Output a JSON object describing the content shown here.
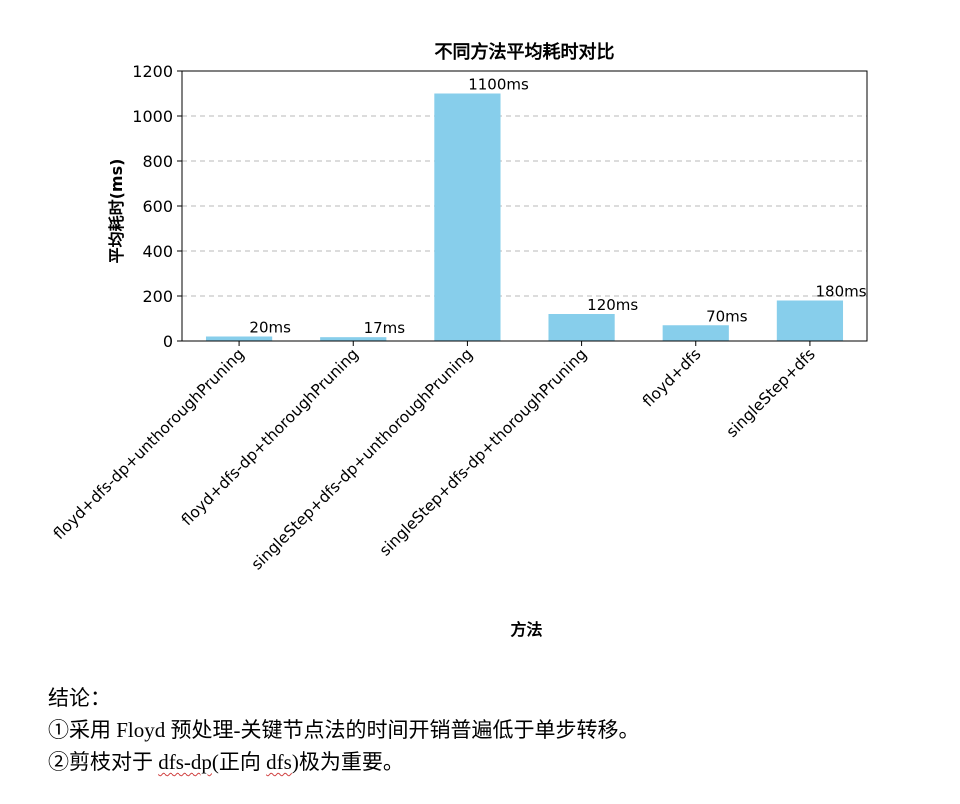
{
  "chart_data": {
    "type": "bar",
    "title": "不同方法平均耗时对比",
    "xlabel": "方法",
    "ylabel": "平均耗时(ms)",
    "categories": [
      "floyd+dfs-dp+unthoroughPruning",
      "floyd+dfs-dp+thoroughPruning",
      "singleStep+dfs-dp+unthoroughPruning",
      "singleStep+dfs-dp+thoroughPruning",
      "floyd+dfs",
      "singleStep+dfs"
    ],
    "values": [
      20,
      17,
      1100,
      120,
      70,
      180
    ],
    "data_labels": [
      "20ms",
      "17ms",
      "1100ms",
      "120ms",
      "70ms",
      "180ms"
    ],
    "ylim": [
      0,
      1200
    ],
    "yticks": [
      0,
      200,
      400,
      600,
      800,
      1000,
      1200
    ],
    "grid": "y-dashed",
    "bar_color": "#87ceeb"
  },
  "conclusion": {
    "heading": "结论：",
    "line1": "①采用 Floyd 预处理-关键节点法的时间开销普遍低于单步转移。",
    "line2_pre": "②剪枝对于 ",
    "line2_code1": "dfs-dp",
    "line2_mid": "(正向 ",
    "line2_code2": "dfs",
    "line2_post": ")极为重要。"
  }
}
